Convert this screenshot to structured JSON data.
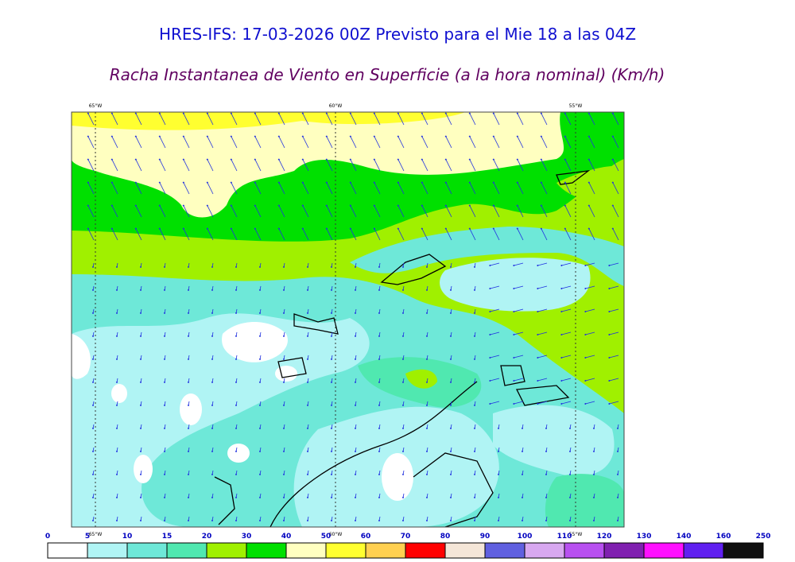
{
  "header": {
    "title": "HRES-IFS: 17-03-2026 00Z Previsto para el Mie 18 a las 04Z",
    "subtitle": "Racha Instantanea de Viento en Superficie (a la hora nominal) (Km/h)"
  },
  "map": {
    "lon_labels": [
      "65°W",
      "60°W",
      "55°W"
    ]
  },
  "colorbar": {
    "levels": [
      0,
      5,
      10,
      15,
      20,
      30,
      40,
      50,
      60,
      70,
      80,
      90,
      100,
      110,
      120,
      130,
      140,
      160,
      250
    ],
    "colors": [
      "#ffffff",
      "#b0f4f4",
      "#6ee8d8",
      "#50e8b0",
      "#a0f000",
      "#00e000",
      "#ffffc0",
      "#ffff30",
      "#ffd050",
      "#ff0000",
      "#f4e6d8",
      "#6060e0",
      "#d8a8f0",
      "#b850f0",
      "#8020b0",
      "#ff10ff",
      "#6020f0",
      "#101010"
    ]
  }
}
